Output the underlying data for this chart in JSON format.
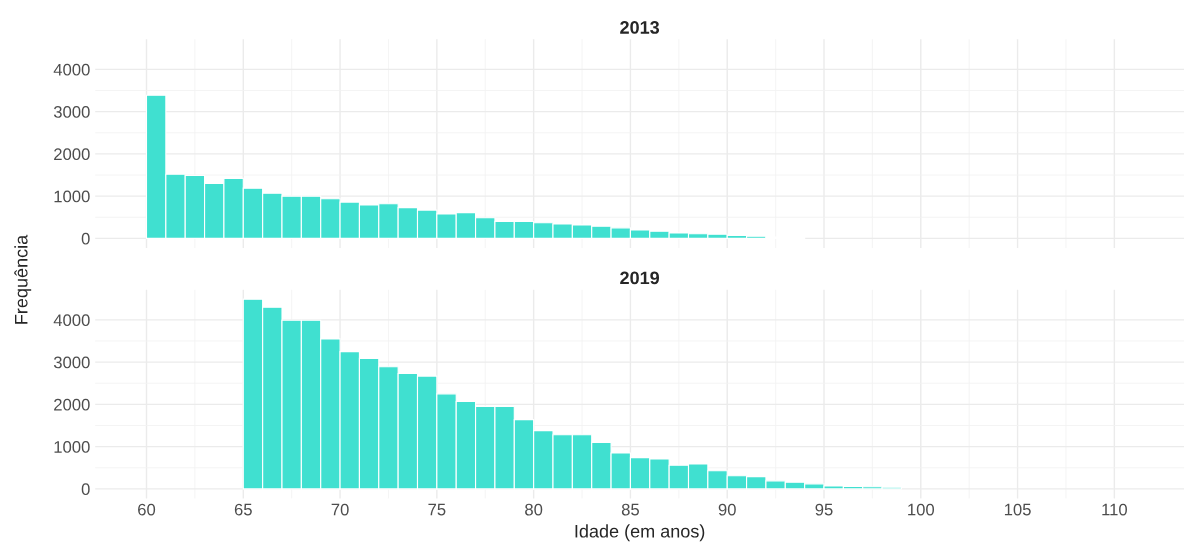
{
  "chart_data": [
    {
      "type": "histogram",
      "title": "2013",
      "ylabel": "Frequência",
      "color": "#40e0d0",
      "bins": [
        60,
        61,
        62,
        63,
        64,
        65,
        66,
        67,
        68,
        69,
        70,
        71,
        72,
        73,
        74,
        75,
        76,
        77,
        78,
        79,
        80,
        81,
        82,
        83,
        84,
        85,
        86,
        87,
        88,
        89,
        90,
        91,
        92,
        93,
        94,
        95,
        96,
        97,
        98,
        99,
        100,
        101,
        102,
        103,
        104,
        105,
        106,
        107,
        108,
        109,
        110,
        111,
        112,
        113
      ],
      "values": [
        3390,
        1520,
        1490,
        1300,
        1420,
        1190,
        1070,
        1000,
        1000,
        940,
        860,
        790,
        820,
        730,
        670,
        580,
        610,
        490,
        400,
        400,
        370,
        340,
        320,
        290,
        250,
        200,
        170,
        130,
        110,
        100,
        70,
        50,
        30,
        30,
        0,
        0,
        0,
        0,
        0,
        0,
        0,
        0,
        0,
        0,
        0,
        0,
        0,
        0,
        0,
        0,
        0,
        0,
        null
      ],
      "xlim": [
        57.35,
        113.6
      ],
      "ylim": [
        -225,
        4715
      ],
      "xticks": [
        60,
        65,
        70,
        75,
        80,
        85,
        90,
        95,
        100,
        105,
        110
      ],
      "yticks": [
        0,
        1000,
        2000,
        3000,
        4000
      ],
      "grid": true,
      "tick_labels": "y"
    },
    {
      "type": "histogram",
      "title": "2019",
      "xlabel": "Idade (em anos)",
      "color": "#40e0d0",
      "bins": [
        65,
        66,
        67,
        68,
        69,
        70,
        71,
        72,
        73,
        74,
        75,
        76,
        77,
        78,
        79,
        80,
        81,
        82,
        83,
        84,
        85,
        86,
        87,
        88,
        89,
        90,
        91,
        92,
        93,
        94,
        95,
        96,
        97,
        98,
        99
      ],
      "values": [
        4490,
        4300,
        3990,
        3990,
        3550,
        3250,
        3090,
        2890,
        2730,
        2670,
        2250,
        2070,
        1950,
        1950,
        1640,
        1380,
        1280,
        1280,
        1100,
        850,
        740,
        710,
        560,
        590,
        430,
        310,
        290,
        190,
        160,
        120,
        70,
        60,
        50,
        40
      ],
      "xlim": [
        57.35,
        113.6
      ],
      "ylim": [
        -225,
        4715
      ],
      "xticks": [
        60,
        65,
        70,
        75,
        80,
        85,
        90,
        95,
        100,
        105,
        110
      ],
      "yticks": [
        0,
        1000,
        2000,
        3000,
        4000
      ],
      "grid": true
    }
  ]
}
